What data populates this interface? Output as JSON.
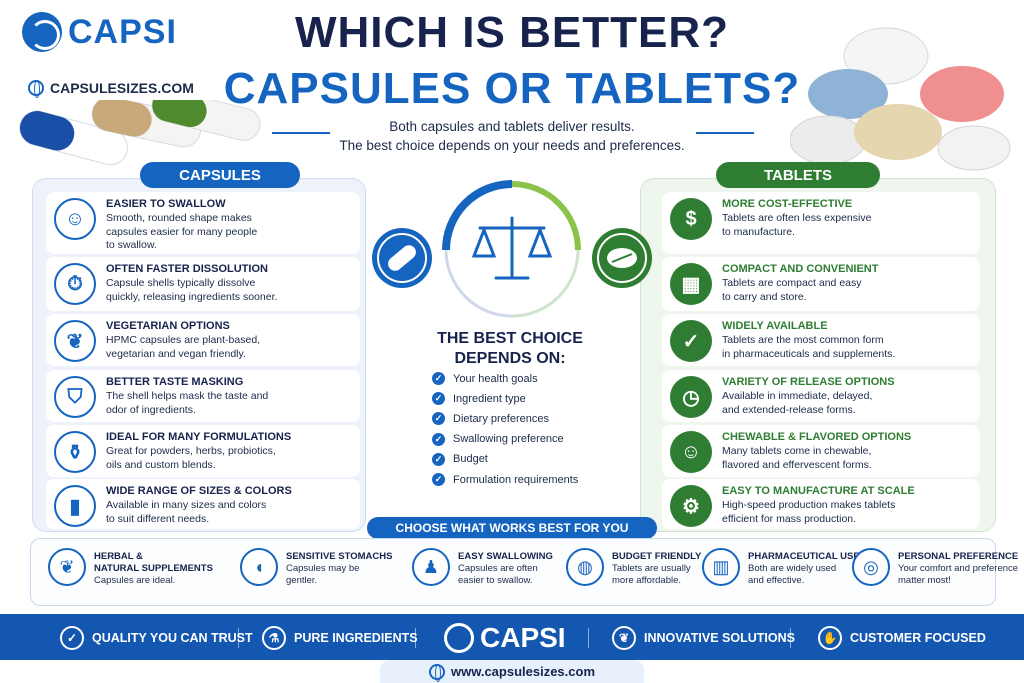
{
  "brand": {
    "name": "CAPSI",
    "website": "CAPSULESIZES.COM"
  },
  "title": {
    "line1": "WHICH IS BETTER?",
    "line2": "CAPSULES OR TABLETS?"
  },
  "intro": {
    "line1": "Both capsules and tablets deliver results.",
    "line2": "The best choice depends on your needs and preferences."
  },
  "capsules": {
    "label": "CAPSULES",
    "items": [
      {
        "title": "EASIER TO SWALLOW",
        "desc": [
          "Smooth, rounded shape makes",
          "capsules easier for many people",
          "to swallow."
        ],
        "icon": "head-swallow-icon"
      },
      {
        "title": "OFTEN FASTER DISSOLUTION",
        "desc": [
          "Capsule shells typically dissolve",
          "quickly, releasing ingredients sooner."
        ],
        "icon": "stopwatch-icon"
      },
      {
        "title": "VEGETARIAN OPTIONS",
        "desc": [
          "HPMC capsules are plant-based,",
          "vegetarian and vegan friendly."
        ],
        "icon": "leaf-icon"
      },
      {
        "title": "BETTER TASTE MASKING",
        "desc": [
          "The shell helps mask the taste and",
          "odor of ingredients."
        ],
        "icon": "shield-icon"
      },
      {
        "title": "IDEAL FOR MANY FORMULATIONS",
        "desc": [
          "Great for powders, herbs, probiotics,",
          "oils and custom blends."
        ],
        "icon": "mortar-pestle-icon"
      },
      {
        "title": "WIDE RANGE OF SIZES & COLORS",
        "desc": [
          "Available in many sizes and colors",
          "to suit different needs."
        ],
        "icon": "capsule-sizes-icon"
      }
    ]
  },
  "tablets": {
    "label": "TABLETS",
    "items": [
      {
        "title": "MORE COST-EFFECTIVE",
        "desc": [
          "Tablets are often less expensive",
          "to manufacture."
        ],
        "icon": "dollar-icon"
      },
      {
        "title": "COMPACT AND CONVENIENT",
        "desc": [
          "Tablets are compact and easy",
          "to carry and store."
        ],
        "icon": "pill-bottle-icon"
      },
      {
        "title": "WIDELY AVAILABLE",
        "desc": [
          "Tablets are the most common form",
          "in pharmaceuticals and supplements."
        ],
        "icon": "shield-check-icon"
      },
      {
        "title": "VARIETY OF RELEASE OPTIONS",
        "desc": [
          "Available in immediate, delayed,",
          "and extended-release forms."
        ],
        "icon": "clock-icon"
      },
      {
        "title": "CHEWABLE & FLAVORED OPTIONS",
        "desc": [
          "Many tablets come in chewable,",
          "flavored and effervescent forms."
        ],
        "icon": "smile-icon"
      },
      {
        "title": "EASY TO MANUFACTURE AT SCALE",
        "desc": [
          "High-speed production makes tablets",
          "efficient for mass production."
        ],
        "icon": "gear-icon"
      }
    ]
  },
  "center": {
    "title_line1": "THE BEST CHOICE",
    "title_line2": "DEPENDS ON:",
    "items": [
      "Your health goals",
      "Ingredient type",
      "Dietary preferences",
      "Swallowing preference",
      "Budget",
      "Formulation requirements"
    ],
    "choose_label": "CHOOSE WHAT WORKS BEST FOR YOU"
  },
  "bottom": [
    {
      "title": [
        "HERBAL &",
        "NATURAL SUPPLEMENTS"
      ],
      "desc": [
        "Capsules are ideal."
      ],
      "icon": "herbs-icon"
    },
    {
      "title": [
        "SENSITIVE STOMACHS"
      ],
      "desc": [
        "Capsules may be",
        "gentler."
      ],
      "icon": "stomach-icon"
    },
    {
      "title": [
        "EASY SWALLOWING"
      ],
      "desc": [
        "Capsules are often",
        "easier to swallow."
      ],
      "icon": "person-icon"
    },
    {
      "title": [
        "BUDGET FRIENDLY"
      ],
      "desc": [
        "Tablets are usually",
        "more affordable."
      ],
      "icon": "piggy-bank-icon"
    },
    {
      "title": [
        "PHARMACEUTICAL USE"
      ],
      "desc": [
        "Both are widely used",
        "and effective."
      ],
      "icon": "medicine-bottle-icon"
    },
    {
      "title": [
        "PERSONAL PREFERENCE"
      ],
      "desc": [
        "Your comfort and preference",
        "matter most!"
      ],
      "icon": "target-icon"
    }
  ],
  "footer": {
    "items": [
      "QUALITY YOU CAN TRUST",
      "PURE INGREDIENTS",
      "INNOVATIVE SOLUTIONS",
      "CUSTOMER FOCUSED"
    ],
    "logo": "CAPSI",
    "url": "www.capsulesizes.com"
  },
  "colors": {
    "blue": "#1565c0",
    "navy": "#17234d",
    "green": "#2e7d32"
  }
}
